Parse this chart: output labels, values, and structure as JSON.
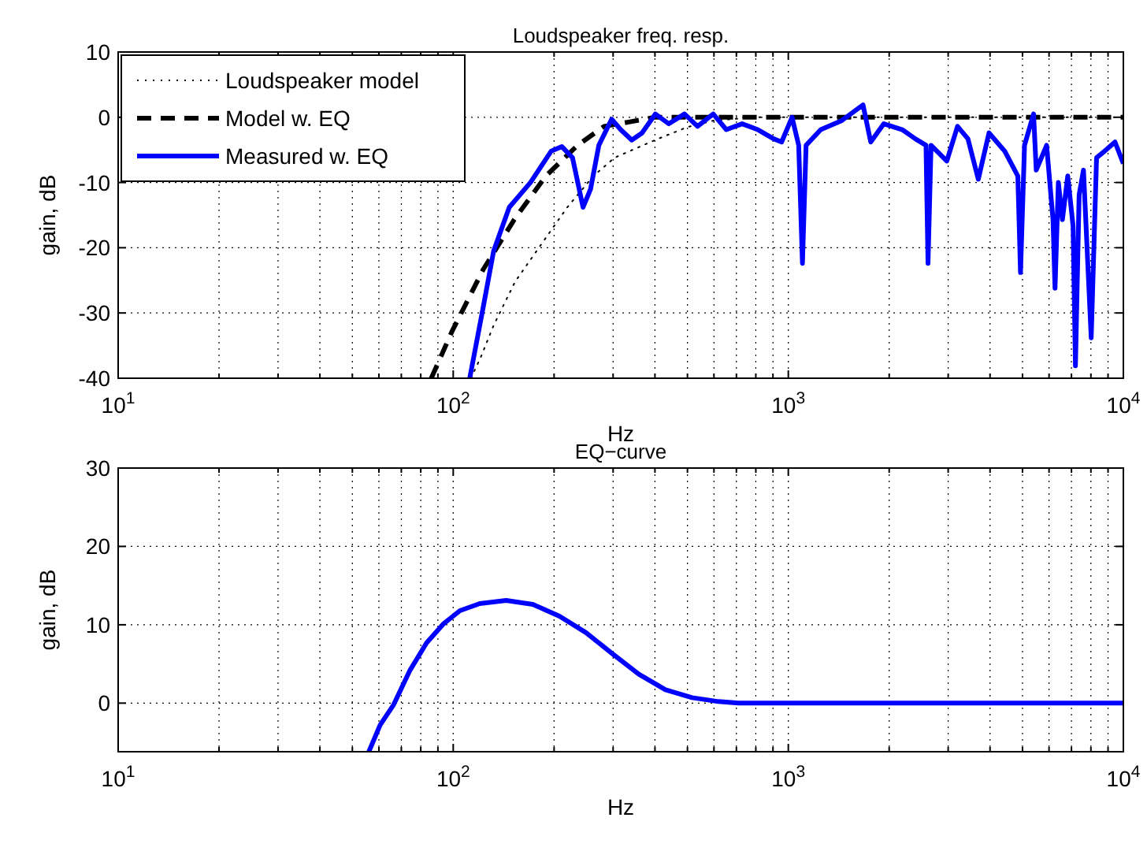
{
  "chart_data": [
    {
      "type": "line",
      "title": "Loudspeaker freq. resp.",
      "xlabel": "Hz",
      "ylabel": "gain, dB",
      "log": "x",
      "grid": true,
      "legend": "top left",
      "xlim": [
        10,
        10000
      ],
      "ylim": [
        -40,
        10
      ],
      "xticks": [
        {
          "value": 10,
          "label": "10$^{1}$"
        },
        {
          "value": 20,
          "label": null
        },
        {
          "value": 30,
          "label": null
        },
        {
          "value": 40,
          "label": null
        },
        {
          "value": 50,
          "label": null
        },
        {
          "value": 60,
          "label": null
        },
        {
          "value": 70,
          "label": null
        },
        {
          "value": 80,
          "label": null
        },
        {
          "value": 90,
          "label": null
        },
        {
          "value": 100,
          "label": "10$^{2}$"
        },
        {
          "value": 200,
          "label": null
        },
        {
          "value": 300,
          "label": null
        },
        {
          "value": 400,
          "label": null
        },
        {
          "value": 500,
          "label": null
        },
        {
          "value": 600,
          "label": null
        },
        {
          "value": 700,
          "label": null
        },
        {
          "value": 800,
          "label": null
        },
        {
          "value": 900,
          "label": null
        },
        {
          "value": 1000,
          "label": "10$^{3}$"
        },
        {
          "value": 2000,
          "label": null
        },
        {
          "value": 3000,
          "label": null
        },
        {
          "value": 4000,
          "label": null
        },
        {
          "value": 5000,
          "label": null
        },
        {
          "value": 6000,
          "label": null
        },
        {
          "value": 7000,
          "label": null
        },
        {
          "value": 8000,
          "label": null
        },
        {
          "value": 9000,
          "label": null
        },
        {
          "value": 10000,
          "label": "10$^{4}$"
        }
      ],
      "yticks": [
        -40,
        -30,
        -20,
        -10,
        0,
        10
      ],
      "series": [
        {
          "name": "Loudspeaker model",
          "color": "#000000",
          "line_style": "dotted",
          "x": [
            113,
            121,
            132,
            153,
            183,
            219,
            262,
            303,
            400,
            500,
            600,
            800,
            10000
          ],
          "values": [
            -40,
            -36.7,
            -31.9,
            -25.2,
            -19.5,
            -13.8,
            -9,
            -6.2,
            -3.5,
            -1.5,
            -0.5,
            0,
            0
          ]
        },
        {
          "name": "Model w. EQ",
          "color": "#000000",
          "line_style": "dashed",
          "x": [
            86,
            99,
            123,
            152,
            189,
            235,
            282,
            337,
            400,
            10000
          ],
          "values": [
            -40,
            -32.9,
            -23.3,
            -15.7,
            -9,
            -4.3,
            -1.4,
            -0.7,
            0,
            0
          ]
        },
        {
          "name": "Measured w. EQ",
          "color": "#0000ff",
          "line_style": "solid",
          "x": [
            112,
            123,
            132,
            147,
            170,
            196,
            211,
            227,
            244,
            257,
            272,
            297,
            316,
            341,
            366,
            401,
            440,
            490,
            536,
            597,
            653,
            728,
            811,
            904,
            955,
            1026,
            1074,
            1102,
            1130,
            1250,
            1445,
            1671,
            1762,
            1928,
            2188,
            2393,
            2576,
            2612,
            2667,
            2972,
            3199,
            3436,
            3690,
            3972,
            4426,
            4842,
            4932,
            5070,
            5395,
            5495,
            5902,
            6166,
            6252,
            6397,
            6577,
            6823,
            7079,
            7194,
            7379,
            7603,
            8017,
            8318,
            8790,
            9441,
            10000
          ],
          "values": [
            -40,
            -29,
            -20.5,
            -13.8,
            -10,
            -5.2,
            -4.5,
            -6.2,
            -13.8,
            -11,
            -4.3,
            -0.3,
            -1.9,
            -3.5,
            -2.4,
            0.5,
            -1,
            0.5,
            -1.4,
            0.5,
            -1.9,
            -1,
            -1.9,
            -3.3,
            -3.8,
            0,
            -4.3,
            -22.4,
            -4.3,
            -1.9,
            -0.5,
            1.9,
            -3.8,
            -1,
            -1.9,
            -3.3,
            -4.3,
            -22.4,
            -4.3,
            -6.7,
            -1.4,
            -3.3,
            -9.5,
            -2.4,
            -5.2,
            -9,
            -23.8,
            -4.3,
            0.5,
            -8.1,
            -4.3,
            -15.7,
            -26.2,
            -10,
            -15.7,
            -9,
            -16.7,
            -38.1,
            -11.9,
            -8.1,
            -33.8,
            -6.2,
            -5.2,
            -3.8,
            -7.1
          ]
        }
      ]
    },
    {
      "type": "line",
      "title": "EQ−curve",
      "xlabel": "Hz",
      "ylabel": "gain, dB",
      "log": "x",
      "grid": true,
      "xlim": [
        10,
        10000
      ],
      "ylim": [
        -6.2,
        30
      ],
      "xticks": [
        {
          "value": 10,
          "label": "10$^{1}$"
        },
        {
          "value": 20,
          "label": null
        },
        {
          "value": 30,
          "label": null
        },
        {
          "value": 40,
          "label": null
        },
        {
          "value": 50,
          "label": null
        },
        {
          "value": 60,
          "label": null
        },
        {
          "value": 70,
          "label": null
        },
        {
          "value": 80,
          "label": null
        },
        {
          "value": 90,
          "label": null
        },
        {
          "value": 100,
          "label": "10$^{2}$"
        },
        {
          "value": 200,
          "label": null
        },
        {
          "value": 300,
          "label": null
        },
        {
          "value": 400,
          "label": null
        },
        {
          "value": 500,
          "label": null
        },
        {
          "value": 600,
          "label": null
        },
        {
          "value": 700,
          "label": null
        },
        {
          "value": 800,
          "label": null
        },
        {
          "value": 900,
          "label": null
        },
        {
          "value": 1000,
          "label": "10$^{3}$"
        },
        {
          "value": 2000,
          "label": null
        },
        {
          "value": 3000,
          "label": null
        },
        {
          "value": 4000,
          "label": null
        },
        {
          "value": 5000,
          "label": null
        },
        {
          "value": 6000,
          "label": null
        },
        {
          "value": 7000,
          "label": null
        },
        {
          "value": 8000,
          "label": null
        },
        {
          "value": 9000,
          "label": null
        },
        {
          "value": 10000,
          "label": "10$^{4}$"
        }
      ],
      "yticks": [
        0,
        10,
        20,
        30
      ],
      "series": [
        {
          "color": "#0000ff",
          "line_style": "solid",
          "x": [
            56,
            60.5,
            66.4,
            74.3,
            83.3,
            93.4,
            104.7,
            120,
            143.9,
            172.8,
            207.5,
            249,
            298.5,
            358,
            430,
            516,
            619,
            710,
            10000
          ],
          "values": [
            -6.2,
            -2.8,
            -0.2,
            4.2,
            7.7,
            10.1,
            11.8,
            12.7,
            13.1,
            12.6,
            11.1,
            9,
            6.3,
            3.7,
            1.7,
            0.7,
            0.2,
            0,
            0
          ]
        }
      ]
    }
  ]
}
